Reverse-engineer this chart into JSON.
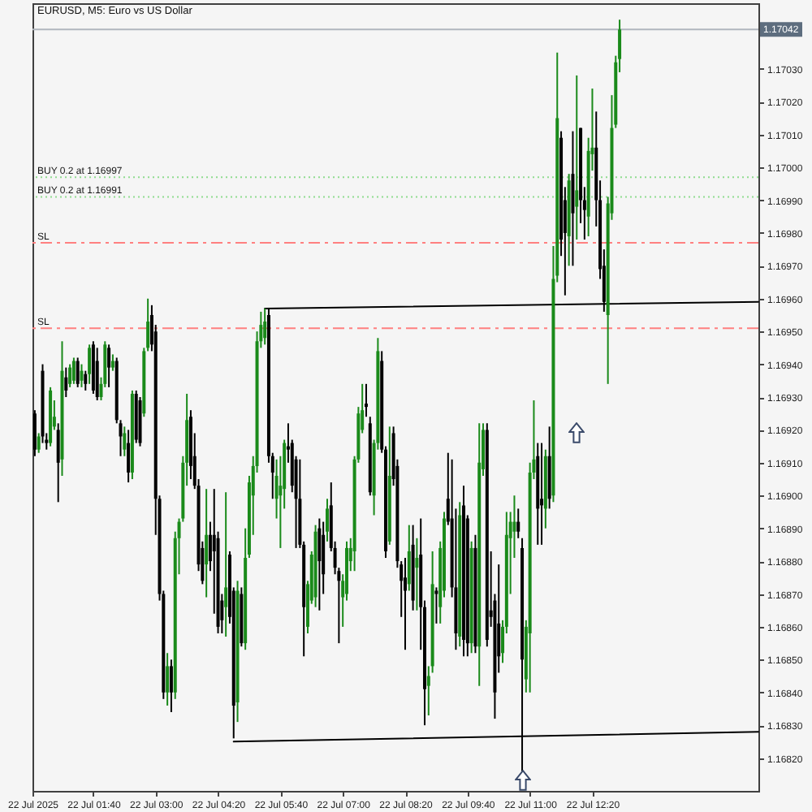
{
  "chart_data": {
    "type": "candlestick",
    "title": "EURUSD, M5: Euro vs US Dollar",
    "x": [
      "2025-07-22T00:25",
      "2025-07-22T00:30",
      "2025-07-22T00:35",
      "2025-07-22T00:40",
      "2025-07-22T00:45",
      "2025-07-22T00:50",
      "2025-07-22T00:55",
      "2025-07-22T01:00",
      "2025-07-22T01:05",
      "2025-07-22T01:10",
      "2025-07-22T01:15",
      "2025-07-22T01:20",
      "2025-07-22T01:25",
      "2025-07-22T01:30",
      "2025-07-22T01:35",
      "2025-07-22T01:40",
      "2025-07-22T01:45",
      "2025-07-22T01:50",
      "2025-07-22T01:55",
      "2025-07-22T02:00",
      "2025-07-22T02:05",
      "2025-07-22T02:10",
      "2025-07-22T02:15",
      "2025-07-22T02:20",
      "2025-07-22T02:25",
      "2025-07-22T02:30",
      "2025-07-22T02:35",
      "2025-07-22T02:40",
      "2025-07-22T02:45",
      "2025-07-22T02:50",
      "2025-07-22T02:55",
      "2025-07-22T03:00",
      "2025-07-22T03:05",
      "2025-07-22T03:10",
      "2025-07-22T03:15",
      "2025-07-22T03:20",
      "2025-07-22T03:25",
      "2025-07-22T03:30",
      "2025-07-22T03:35",
      "2025-07-22T03:40",
      "2025-07-22T03:45",
      "2025-07-22T03:50",
      "2025-07-22T03:55",
      "2025-07-22T04:00",
      "2025-07-22T04:05",
      "2025-07-22T04:10",
      "2025-07-22T04:15",
      "2025-07-22T04:20",
      "2025-07-22T04:25",
      "2025-07-22T04:30",
      "2025-07-22T04:35",
      "2025-07-22T04:40",
      "2025-07-22T04:45",
      "2025-07-22T04:50",
      "2025-07-22T04:55",
      "2025-07-22T05:00",
      "2025-07-22T05:05",
      "2025-07-22T05:10",
      "2025-07-22T05:15",
      "2025-07-22T05:20",
      "2025-07-22T05:25",
      "2025-07-22T05:30",
      "2025-07-22T05:35",
      "2025-07-22T05:40",
      "2025-07-22T05:45",
      "2025-07-22T05:50",
      "2025-07-22T05:55",
      "2025-07-22T06:00",
      "2025-07-22T06:05",
      "2025-07-22T06:10",
      "2025-07-22T06:15",
      "2025-07-22T06:20",
      "2025-07-22T06:25",
      "2025-07-22T06:30",
      "2025-07-22T06:35",
      "2025-07-22T06:40",
      "2025-07-22T06:45",
      "2025-07-22T06:50",
      "2025-07-22T06:55",
      "2025-07-22T07:00",
      "2025-07-22T07:05",
      "2025-07-22T07:10",
      "2025-07-22T07:15",
      "2025-07-22T07:20",
      "2025-07-22T07:25",
      "2025-07-22T07:30",
      "2025-07-22T07:35",
      "2025-07-22T07:40",
      "2025-07-22T07:45",
      "2025-07-22T07:50",
      "2025-07-22T07:55",
      "2025-07-22T08:00",
      "2025-07-22T08:05",
      "2025-07-22T08:10",
      "2025-07-22T08:15",
      "2025-07-22T08:20",
      "2025-07-22T08:25",
      "2025-07-22T08:30",
      "2025-07-22T08:35",
      "2025-07-22T08:40",
      "2025-07-22T08:45",
      "2025-07-22T08:50",
      "2025-07-22T08:55",
      "2025-07-22T09:00",
      "2025-07-22T09:05",
      "2025-07-22T09:10",
      "2025-07-22T09:15",
      "2025-07-22T09:20",
      "2025-07-22T09:25",
      "2025-07-22T09:30",
      "2025-07-22T09:35",
      "2025-07-22T09:40",
      "2025-07-22T09:45",
      "2025-07-22T09:50",
      "2025-07-22T09:55",
      "2025-07-22T10:00",
      "2025-07-22T10:05",
      "2025-07-22T10:10",
      "2025-07-22T10:15",
      "2025-07-22T10:20",
      "2025-07-22T10:25",
      "2025-07-22T10:30",
      "2025-07-22T10:35",
      "2025-07-22T10:40",
      "2025-07-22T10:45",
      "2025-07-22T10:50",
      "2025-07-22T10:55",
      "2025-07-22T11:00",
      "2025-07-22T11:05",
      "2025-07-22T11:10",
      "2025-07-22T11:15",
      "2025-07-22T11:20",
      "2025-07-22T11:25",
      "2025-07-22T11:30",
      "2025-07-22T11:35",
      "2025-07-22T11:40",
      "2025-07-22T11:45",
      "2025-07-22T11:50",
      "2025-07-22T11:55",
      "2025-07-22T12:00",
      "2025-07-22T12:05",
      "2025-07-22T12:10",
      "2025-07-22T12:15",
      "2025-07-22T12:20",
      "2025-07-22T12:25",
      "2025-07-22T12:30",
      "2025-07-22T12:35",
      "2025-07-22T12:40",
      "2025-07-22T12:45",
      "2025-07-22T12:50",
      "2025-07-22T12:55"
    ],
    "ohlc": [
      [
        1.16925,
        1.16926,
        1.16912,
        1.16914
      ],
      [
        1.16914,
        1.16919,
        1.16913,
        1.16918
      ],
      [
        1.16938,
        1.1694,
        1.16916,
        1.16918
      ],
      [
        1.16917,
        1.16919,
        1.16914,
        1.16916
      ],
      [
        1.16916,
        1.16933,
        1.16915,
        1.16932
      ],
      [
        1.16921,
        1.16929,
        1.1692,
        1.16924
      ],
      [
        1.1692,
        1.16922,
        1.16898,
        1.1691
      ],
      [
        1.16911,
        1.16947,
        1.16906,
        1.16938
      ],
      [
        1.16936,
        1.16939,
        1.1693,
        1.16932
      ],
      [
        1.16934,
        1.1694,
        1.16933,
        1.16939
      ],
      [
        1.16935,
        1.16942,
        1.16934,
        1.16941
      ],
      [
        1.16941,
        1.16942,
        1.16933,
        1.16934
      ],
      [
        1.16935,
        1.1694,
        1.16933,
        1.16938
      ],
      [
        1.16937,
        1.16938,
        1.16932,
        1.16934
      ],
      [
        1.16937,
        1.16946,
        1.16934,
        1.16945
      ],
      [
        1.16946,
        1.16947,
        1.16931,
        1.16932
      ],
      [
        1.16941,
        1.16945,
        1.16929,
        1.1693
      ],
      [
        1.1693,
        1.16936,
        1.16929,
        1.16934
      ],
      [
        1.16934,
        1.16947,
        1.16933,
        1.16946
      ],
      [
        1.16945,
        1.16946,
        1.16933,
        1.16939
      ],
      [
        1.16939,
        1.16943,
        1.16938,
        1.16941
      ],
      [
        1.16941,
        1.16942,
        1.16922,
        1.16923
      ],
      [
        1.16922,
        1.16923,
        1.16912,
        1.16918
      ],
      [
        1.16914,
        1.16921,
        1.16912,
        1.16919
      ],
      [
        1.16916,
        1.1692,
        1.16904,
        1.16907
      ],
      [
        1.16907,
        1.16932,
        1.16905,
        1.16931
      ],
      [
        1.16931,
        1.16932,
        1.16916,
        1.16917
      ],
      [
        1.16929,
        1.1693,
        1.16915,
        1.16916
      ],
      [
        1.16925,
        1.16945,
        1.16924,
        1.16944
      ],
      [
        1.16945,
        1.1696,
        1.16944,
        1.16953
      ],
      [
        1.16955,
        1.16958,
        1.16944,
        1.16946
      ],
      [
        1.1695,
        1.16952,
        1.16888,
        1.16899
      ],
      [
        1.16899,
        1.169,
        1.16868,
        1.1687
      ],
      [
        1.1687,
        1.16871,
        1.16838,
        1.1684
      ],
      [
        1.1684,
        1.16852,
        1.16836,
        1.16848
      ],
      [
        1.16848,
        1.1685,
        1.16834,
        1.1684
      ],
      [
        1.1684,
        1.16889,
        1.16838,
        1.16887
      ],
      [
        1.16887,
        1.16893,
        1.16876,
        1.16892
      ],
      [
        1.16893,
        1.16912,
        1.16892,
        1.1691
      ],
      [
        1.1691,
        1.16931,
        1.16903,
        1.16923
      ],
      [
        1.16924,
        1.16926,
        1.16905,
        1.16909
      ],
      [
        1.16912,
        1.16919,
        1.16902,
        1.16903
      ],
      [
        1.16903,
        1.16905,
        1.16877,
        1.16879
      ],
      [
        1.16884,
        1.16886,
        1.16873,
        1.16874
      ],
      [
        1.16879,
        1.16902,
        1.16869,
        1.16888
      ],
      [
        1.16888,
        1.16892,
        1.16877,
        1.1688
      ],
      [
        1.16888,
        1.16902,
        1.16864,
        1.16883
      ],
      [
        1.16887,
        1.16889,
        1.16858,
        1.1686
      ],
      [
        1.16868,
        1.1687,
        1.16858,
        1.16862
      ],
      [
        1.16866,
        1.16901,
        1.16857,
        1.16872
      ],
      [
        1.16882,
        1.16883,
        1.16861,
        1.16863
      ],
      [
        1.16871,
        1.16872,
        1.16826,
        1.16836
      ],
      [
        1.16837,
        1.16874,
        1.16831,
        1.16871
      ],
      [
        1.1687,
        1.16872,
        1.16854,
        1.16855
      ],
      [
        1.16855,
        1.1689,
        1.16853,
        1.16881
      ],
      [
        1.16882,
        1.16906,
        1.16881,
        1.16904
      ],
      [
        1.169,
        1.16912,
        1.16888,
        1.16909
      ],
      [
        1.16909,
        1.1695,
        1.16907,
        1.16947
      ],
      [
        1.16947,
        1.16956,
        1.16945,
        1.16952
      ],
      [
        1.16948,
        1.16957,
        1.16946,
        1.16953
      ],
      [
        1.16955,
        1.16957,
        1.1691,
        1.16912
      ],
      [
        1.16912,
        1.16913,
        1.16899,
        1.16907
      ],
      [
        1.16899,
        1.16911,
        1.16893,
        1.16906
      ],
      [
        1.169,
        1.16912,
        1.16884,
        1.16903
      ],
      [
        1.16902,
        1.16917,
        1.16896,
        1.16916
      ],
      [
        1.16915,
        1.16922,
        1.1691,
        1.16914
      ],
      [
        1.16916,
        1.16917,
        1.16901,
        1.16903
      ],
      [
        1.16911,
        1.16912,
        1.16884,
        1.16899
      ],
      [
        1.16899,
        1.16911,
        1.16884,
        1.16885
      ],
      [
        1.16885,
        1.16886,
        1.16851,
        1.16866
      ],
      [
        1.1686,
        1.16874,
        1.16858,
        1.16873
      ],
      [
        1.16868,
        1.16883,
        1.16867,
        1.16882
      ],
      [
        1.16869,
        1.16891,
        1.16866,
        1.16889
      ],
      [
        1.1689,
        1.16893,
        1.16865,
        1.1688
      ],
      [
        1.16888,
        1.16892,
        1.1687,
        1.16876
      ],
      [
        1.16889,
        1.16899,
        1.16886,
        1.16896
      ],
      [
        1.16897,
        1.16904,
        1.16883,
        1.16884
      ],
      [
        1.16884,
        1.16886,
        1.16876,
        1.16878
      ],
      [
        1.16877,
        1.16878,
        1.16855,
        1.16874
      ],
      [
        1.16869,
        1.16876,
        1.1686,
        1.16874
      ],
      [
        1.1687,
        1.16886,
        1.16868,
        1.16884
      ],
      [
        1.1688,
        1.16887,
        1.16877,
        1.16884
      ],
      [
        1.16883,
        1.16912,
        1.16877,
        1.16911
      ],
      [
        1.16911,
        1.16927,
        1.1691,
        1.16925
      ],
      [
        1.1692,
        1.16934,
        1.16919,
        1.16926
      ],
      [
        1.16928,
        1.16934,
        1.16924,
        1.16927
      ],
      [
        1.16922,
        1.16924,
        1.169,
        1.16901
      ],
      [
        1.169,
        1.16917,
        1.16894,
        1.16916
      ],
      [
        1.16916,
        1.16948,
        1.16914,
        1.16944
      ],
      [
        1.16941,
        1.16944,
        1.16913,
        1.16914
      ],
      [
        1.16914,
        1.16915,
        1.16881,
        1.16883
      ],
      [
        1.16886,
        1.16921,
        1.16885,
        1.16906
      ],
      [
        1.16919,
        1.16921,
        1.16903,
        1.16905
      ],
      [
        1.16909,
        1.16911,
        1.16878,
        1.1688
      ],
      [
        1.16879,
        1.1688,
        1.16863,
        1.16874
      ],
      [
        1.16875,
        1.16881,
        1.16853,
        1.16871
      ],
      [
        1.16873,
        1.16891,
        1.16871,
        1.16883
      ],
      [
        1.16885,
        1.16891,
        1.16865,
        1.16868
      ],
      [
        1.16878,
        1.16887,
        1.16865,
        1.16881
      ],
      [
        1.16882,
        1.16893,
        1.16853,
        1.16866
      ],
      [
        1.16866,
        1.16868,
        1.1683,
        1.16841
      ],
      [
        1.16842,
        1.16848,
        1.16833,
        1.16845
      ],
      [
        1.16848,
        1.16883,
        1.16846,
        1.16873
      ],
      [
        1.16871,
        1.16872,
        1.16861,
        1.1687
      ],
      [
        1.16866,
        1.16886,
        1.16861,
        1.16884
      ],
      [
        1.16871,
        1.16895,
        1.16869,
        1.16893
      ],
      [
        1.16899,
        1.16913,
        1.16891,
        1.16892
      ],
      [
        1.16893,
        1.16911,
        1.16869,
        1.16872
      ],
      [
        1.16872,
        1.16896,
        1.16853,
        1.16858
      ],
      [
        1.16857,
        1.16898,
        1.16854,
        1.16894
      ],
      [
        1.16897,
        1.16903,
        1.16851,
        1.16856
      ],
      [
        1.16893,
        1.16894,
        1.16851,
        1.16855
      ],
      [
        1.16855,
        1.16886,
        1.16852,
        1.16884
      ],
      [
        1.16884,
        1.16888,
        1.16852,
        1.16854
      ],
      [
        1.16854,
        1.16922,
        1.16842,
        1.1691
      ],
      [
        1.16908,
        1.16922,
        1.16906,
        1.1692
      ],
      [
        1.1692,
        1.16922,
        1.16854,
        1.16856
      ],
      [
        1.16865,
        1.16883,
        1.1686,
        1.16863
      ],
      [
        1.16868,
        1.1687,
        1.16832,
        1.1684
      ],
      [
        1.16861,
        1.16879,
        1.16846,
        1.16851
      ],
      [
        1.16852,
        1.16862,
        1.16849,
        1.1686
      ],
      [
        1.1686,
        1.16895,
        1.16858,
        1.16888
      ],
      [
        1.16887,
        1.16895,
        1.1687,
        1.16892
      ],
      [
        1.16889,
        1.169,
        1.16881,
        1.16892
      ],
      [
        1.16892,
        1.16896,
        1.16887,
        1.16889
      ],
      [
        1.16884,
        1.16887,
        1.16816,
        1.1685
      ],
      [
        1.16844,
        1.16862,
        1.1684,
        1.1686
      ],
      [
        1.16858,
        1.1691,
        1.1684,
        1.16907
      ],
      [
        1.16907,
        1.16929,
        1.16905,
        1.16911
      ],
      [
        1.16912,
        1.16916,
        1.16885,
        1.16896
      ],
      [
        1.16899,
        1.16916,
        1.16885,
        1.16897
      ],
      [
        1.16896,
        1.16914,
        1.1689,
        1.16912
      ],
      [
        1.16912,
        1.16921,
        1.16896,
        1.16899
      ],
      [
        1.169,
        1.16976,
        1.16898,
        1.16966
      ],
      [
        1.16967,
        1.17035,
        1.16965,
        1.17015
      ],
      [
        1.17009,
        1.17011,
        1.16973,
        1.16978
      ],
      [
        1.1699,
        1.16994,
        1.16961,
        1.1698
      ],
      [
        1.16979,
        1.16998,
        1.1697,
        1.16996
      ],
      [
        1.16998,
        1.17011,
        1.1697,
        1.16986
      ],
      [
        1.16988,
        1.17028,
        1.16978,
        1.16993
      ],
      [
        1.17012,
        1.17012,
        1.16983,
        1.1699
      ],
      [
        1.1699,
        1.16994,
        1.16978,
        1.16987
      ],
      [
        1.16985,
        1.17009,
        1.16979,
        1.17005
      ],
      [
        1.17004,
        1.17024,
        1.16999,
        1.17006
      ],
      [
        1.17006,
        1.17017,
        1.16982,
        1.1699
      ],
      [
        1.1699,
        1.16996,
        1.16966,
        1.16969
      ],
      [
        1.1697,
        1.16975,
        1.16956,
        1.16959
      ],
      [
        1.16955,
        1.16991,
        1.16934,
        1.16989
      ],
      [
        1.16986,
        1.17022,
        1.16984,
        1.17012
      ],
      [
        1.17013,
        1.17034,
        1.17012,
        1.17032
      ],
      [
        1.17033,
        1.17045,
        1.17029,
        1.17042
      ]
    ],
    "colors": [
      "#000000",
      "#1a8a1a",
      "#000000",
      "#000000",
      "#1a8a1a",
      "#1a8a1a",
      "#000000",
      "#1a8a1a",
      "#000000",
      "#1a8a1a",
      "#1a8a1a",
      "#000000",
      "#1a8a1a",
      "#000000",
      "#1a8a1a",
      "#000000",
      "#000000",
      "#1a8a1a",
      "#1a8a1a",
      "#000000",
      "#1a8a1a",
      "#000000",
      "#000000",
      "#1a8a1a",
      "#000000",
      "#1a8a1a",
      "#000000",
      "#000000",
      "#1a8a1a",
      "#1a8a1a",
      "#000000",
      "#000000",
      "#000000",
      "#000000",
      "#1a8a1a",
      "#000000",
      "#1a8a1a",
      "#1a8a1a",
      "#1a8a1a",
      "#1a8a1a",
      "#000000",
      "#000000",
      "#000000",
      "#000000",
      "#1a8a1a",
      "#000000",
      "#000000",
      "#000000",
      "#000000",
      "#1a8a1a",
      "#000000",
      "#000000",
      "#1a8a1a",
      "#000000",
      "#1a8a1a",
      "#1a8a1a",
      "#1a8a1a",
      "#1a8a1a",
      "#1a8a1a",
      "#1a8a1a",
      "#000000",
      "#000000",
      "#1a8a1a",
      "#1a8a1a",
      "#1a8a1a",
      "#000000",
      "#000000",
      "#000000",
      "#000000",
      "#000000",
      "#1a8a1a",
      "#1a8a1a",
      "#1a8a1a",
      "#000000",
      "#000000",
      "#1a8a1a",
      "#000000",
      "#000000",
      "#000000",
      "#1a8a1a",
      "#1a8a1a",
      "#1a8a1a",
      "#1a8a1a",
      "#1a8a1a",
      "#1a8a1a",
      "#000000",
      "#000000",
      "#1a8a1a",
      "#1a8a1a",
      "#000000",
      "#000000",
      "#1a8a1a",
      "#000000",
      "#000000",
      "#000000",
      "#000000",
      "#1a8a1a",
      "#000000",
      "#1a8a1a",
      "#000000",
      "#000000",
      "#1a8a1a",
      "#1a8a1a",
      "#000000",
      "#1a8a1a",
      "#1a8a1a",
      "#000000",
      "#000000",
      "#000000",
      "#1a8a1a",
      "#000000",
      "#000000",
      "#1a8a1a",
      "#000000",
      "#1a8a1a",
      "#1a8a1a",
      "#000000",
      "#000000",
      "#000000",
      "#000000",
      "#1a8a1a",
      "#1a8a1a",
      "#1a8a1a",
      "#1a8a1a",
      "#000000",
      "#000000",
      "#1a8a1a",
      "#1a8a1a",
      "#1a8a1a",
      "#000000",
      "#000000",
      "#1a8a1a",
      "#000000",
      "#1a8a1a",
      "#1a8a1a",
      "#000000",
      "#000000",
      "#1a8a1a",
      "#000000",
      "#1a8a1a",
      "#000000",
      "#000000",
      "#1a8a1a",
      "#1a8a1a",
      "#000000",
      "#000000",
      "#000000",
      "#1a8a1a",
      "#1a8a1a",
      "#1a8a1a",
      "#1a8a1a"
    ],
    "series": [
      {
        "type": "line",
        "x": [
          "2025-07-22T05:20",
          "2025-07-22T15:53"
        ],
        "values": [
          1.16957,
          1.16959
        ],
        "color": "#000000"
      },
      {
        "type": "line",
        "x": [
          "2025-07-22T04:40",
          "2025-07-22T15:53"
        ],
        "values": [
          1.16825,
          1.16828
        ],
        "color": "#000000"
      }
    ],
    "xlim": [
      "2025-07-22T00:22",
      "2025-07-22T15:53"
    ],
    "xticks": [
      {
        "value": "2025-07-22T00:22",
        "label": "22 Jul 2025"
      },
      {
        "value": "2025-07-22T01:40",
        "label": "22 Jul 01:40"
      },
      {
        "value": "2025-07-22T03:00",
        "label": "22 Jul 03:00"
      },
      {
        "value": "2025-07-22T04:20",
        "label": "22 Jul 04:20"
      },
      {
        "value": "2025-07-22T05:40",
        "label": "22 Jul 05:40"
      },
      {
        "value": "2025-07-22T07:00",
        "label": "22 Jul 07:00"
      },
      {
        "value": "2025-07-22T08:20",
        "label": "22 Jul 08:20"
      },
      {
        "value": "2025-07-22T09:40",
        "label": "22 Jul 09:40"
      },
      {
        "value": "2025-07-22T11:00",
        "label": "22 Jul 11:00"
      },
      {
        "value": "2025-07-22T12:20",
        "label": "22 Jul 12:20"
      }
    ],
    "ylim": [
      1.1681,
      1.1705
    ],
    "yticks": [
      {
        "value": 1.1682,
        "label": "1.16820"
      },
      {
        "value": 1.1683,
        "label": "1.16830"
      },
      {
        "value": 1.1684,
        "label": "1.16840"
      },
      {
        "value": 1.1685,
        "label": "1.16850"
      },
      {
        "value": 1.1686,
        "label": "1.16860"
      },
      {
        "value": 1.1687,
        "label": "1.16870"
      },
      {
        "value": 1.1688,
        "label": "1.16880"
      },
      {
        "value": 1.1689,
        "label": "1.16890"
      },
      {
        "value": 1.169,
        "label": "1.16900"
      },
      {
        "value": 1.1691,
        "label": "1.16910"
      },
      {
        "value": 1.1692,
        "label": "1.16920"
      },
      {
        "value": 1.1693,
        "label": "1.16930"
      },
      {
        "value": 1.1694,
        "label": "1.16940"
      },
      {
        "value": 1.1695,
        "label": "1.16950"
      },
      {
        "value": 1.1696,
        "label": "1.16960"
      },
      {
        "value": 1.1697,
        "label": "1.16970"
      },
      {
        "value": 1.1698,
        "label": "1.16980"
      },
      {
        "value": 1.1699,
        "label": "1.16990"
      },
      {
        "value": 1.17,
        "label": "1.17000"
      },
      {
        "value": 1.1701,
        "label": "1.17010"
      },
      {
        "value": 1.1702,
        "label": "1.17020"
      },
      {
        "value": 1.1703,
        "label": "1.17030"
      }
    ],
    "ref_lines": [
      {
        "axis": "y",
        "value": 1.16997,
        "label": "BUY 0.2 at 1.16997",
        "color": "#90dc90",
        "line_style": "dotted"
      },
      {
        "axis": "y",
        "value": 1.16991,
        "label": "BUY 0.2 at 1.16991",
        "color": "#90dc90",
        "line_style": "dotted"
      },
      {
        "axis": "y",
        "value": 1.16977,
        "label": "SL",
        "color": "#ff8080",
        "line_style": "dashed"
      },
      {
        "axis": "y",
        "value": 1.16951,
        "label": "SL",
        "color": "#ff8080",
        "line_style": "dashed"
      },
      {
        "axis": "y",
        "value": 1.17042,
        "label": "1.17042",
        "color": "#b0b6be",
        "line_style": "solid"
      }
    ]
  }
}
